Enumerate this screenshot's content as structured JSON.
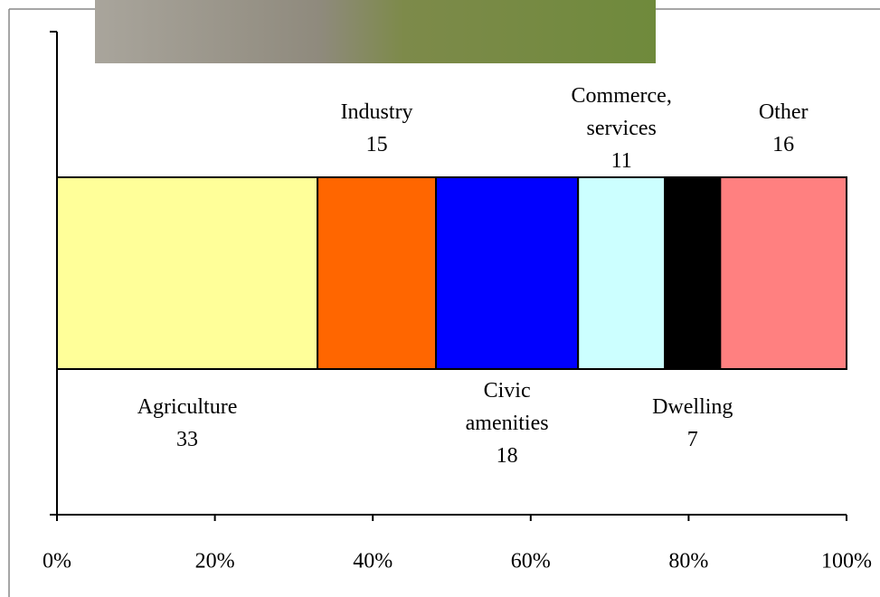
{
  "chart_data": {
    "type": "stacked-bar",
    "orientation": "horizontal",
    "series": [
      {
        "name": "Agriculture",
        "color": "#ffff99",
        "values": [
          33
        ]
      },
      {
        "name": "Industry",
        "color": "#ff6600",
        "values": [
          15
        ]
      },
      {
        "name": "Civic amenities",
        "color": "#0000ff",
        "values": [
          18
        ]
      },
      {
        "name": "Commerce, services",
        "color": "#ccffff",
        "values": [
          11
        ]
      },
      {
        "name": "Dwelling",
        "color": "#000000",
        "values": [
          7
        ]
      },
      {
        "name": "Other",
        "color": "#ff8080",
        "values": [
          16
        ]
      }
    ],
    "xlim": [
      0,
      100
    ],
    "xticks": [
      {
        "value": 0,
        "label": "0%"
      },
      {
        "value": 20,
        "label": "20%"
      },
      {
        "value": 40,
        "label": "40%"
      },
      {
        "value": 60,
        "label": "60%"
      },
      {
        "value": 80,
        "label": "80%"
      },
      {
        "value": 100,
        "label": "100%"
      }
    ]
  }
}
